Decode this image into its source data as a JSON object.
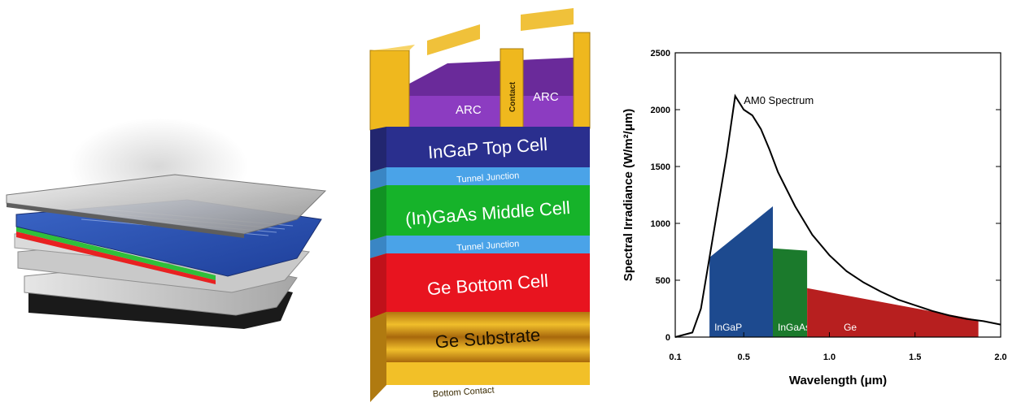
{
  "stack_diagram": {
    "arc_left": "ARC",
    "arc_right": "ARC",
    "contact": "Contact",
    "top_cell": "InGaP Top Cell",
    "tunnel_junction_1": "Tunnel Junction",
    "middle_cell": "(In)GaAs Middle Cell",
    "tunnel_junction_2": "Tunnel Junction",
    "bottom_cell": "Ge Bottom Cell",
    "substrate": "Ge Substrate",
    "bottom_contact": "Bottom Contact",
    "colors": {
      "gold": "#e9b21c",
      "arc": "#7a2fa6",
      "top_cell": "#2b2f8f",
      "tunnel": "#4aa3e8",
      "middle_cell": "#15b52a",
      "bottom_cell": "#e8141f",
      "substrate": "#c8860f"
    }
  },
  "chart_data": {
    "type": "area",
    "xlabel": "Wavelength (μm)",
    "ylabel": "Spectral Irradiance (W/m²/μm)",
    "xlim": [
      0.1,
      2.0
    ],
    "ylim": [
      0,
      2500
    ],
    "x_ticks": [
      "0.1",
      "0.5",
      "1.0",
      "1.5",
      "2.0"
    ],
    "y_ticks": [
      "0",
      "500",
      "1000",
      "1500",
      "2000",
      "2500"
    ],
    "annotation": "AM0 Spectrum",
    "series": [
      {
        "name": "AM0 Spectrum",
        "color": "#000000",
        "x": [
          0.1,
          0.2,
          0.25,
          0.3,
          0.35,
          0.4,
          0.45,
          0.5,
          0.55,
          0.6,
          0.65,
          0.7,
          0.75,
          0.8,
          0.9,
          1.0,
          1.1,
          1.2,
          1.3,
          1.4,
          1.5,
          1.6,
          1.7,
          1.8,
          1.9,
          2.0
        ],
        "y": [
          0,
          40,
          250,
          700,
          1150,
          1600,
          2120,
          2000,
          1950,
          1830,
          1650,
          1450,
          1300,
          1150,
          900,
          720,
          580,
          480,
          400,
          330,
          280,
          230,
          190,
          160,
          140,
          110
        ]
      }
    ],
    "regions": [
      {
        "name": "InGaP",
        "color": "#1d4a8f",
        "x_start": 0.3,
        "x_end": 0.67,
        "y_start": 700,
        "y_end": 1150
      },
      {
        "name": "InGaAs",
        "color": "#1b7a2c",
        "x_start": 0.67,
        "x_end": 0.87,
        "y_start": 780,
        "y_end": 760
      },
      {
        "name": "Ge",
        "color": "#b71f1f",
        "x_start": 0.87,
        "x_end": 1.87,
        "y_start": 430,
        "y_end": 150
      }
    ]
  }
}
